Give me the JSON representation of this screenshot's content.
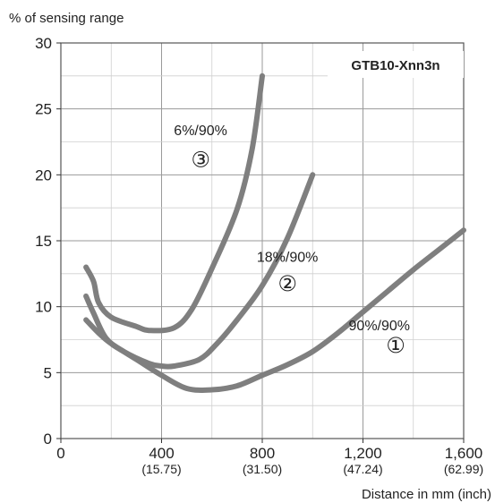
{
  "chart_data": {
    "type": "line",
    "ylabel": "% of sensing range",
    "xlabel": "Distance in mm (inch)",
    "product_label": "GTB10-Xnn3n",
    "xlim": [
      0,
      1600
    ],
    "ylim": [
      0,
      30
    ],
    "grid": true,
    "x_ticks": [
      {
        "value": 0,
        "label": "0",
        "sub": ""
      },
      {
        "value": 400,
        "label": "400",
        "sub": "(15.75)"
      },
      {
        "value": 800,
        "label": "800",
        "sub": "(31.50)"
      },
      {
        "value": 1200,
        "label": "1,200",
        "sub": "(47.24)"
      },
      {
        "value": 1600,
        "label": "1,600",
        "sub": "(62.99)"
      }
    ],
    "y_ticks": [
      {
        "value": 0,
        "label": "0"
      },
      {
        "value": 5,
        "label": "5"
      },
      {
        "value": 10,
        "label": "10"
      },
      {
        "value": 15,
        "label": "15"
      },
      {
        "value": 20,
        "label": "20"
      },
      {
        "value": 25,
        "label": "25"
      },
      {
        "value": 30,
        "label": "30"
      }
    ],
    "series": [
      {
        "name": "90%/90%",
        "marker": "①",
        "color": "#7f7f7f",
        "points": [
          [
            100,
            9.0
          ],
          [
            150,
            8.0
          ],
          [
            200,
            7.2
          ],
          [
            300,
            6.0
          ],
          [
            400,
            4.8
          ],
          [
            500,
            3.8
          ],
          [
            600,
            3.7
          ],
          [
            700,
            4.0
          ],
          [
            800,
            4.8
          ],
          [
            900,
            5.6
          ],
          [
            1000,
            6.6
          ],
          [
            1100,
            8.0
          ],
          [
            1200,
            9.6
          ],
          [
            1300,
            11.2
          ],
          [
            1400,
            12.8
          ],
          [
            1500,
            14.3
          ],
          [
            1600,
            15.8
          ]
        ]
      },
      {
        "name": "18%/90%",
        "marker": "②",
        "color": "#7f7f7f",
        "points": [
          [
            100,
            10.8
          ],
          [
            130,
            9.5
          ],
          [
            180,
            7.6
          ],
          [
            250,
            6.6
          ],
          [
            350,
            5.7
          ],
          [
            400,
            5.5
          ],
          [
            450,
            5.5
          ],
          [
            550,
            6.0
          ],
          [
            620,
            7.2
          ],
          [
            700,
            9.0
          ],
          [
            800,
            11.6
          ],
          [
            900,
            15.2
          ],
          [
            1000,
            20.0
          ]
        ]
      },
      {
        "name": "6%/90%",
        "marker": "③",
        "color": "#7f7f7f",
        "points": [
          [
            100,
            13.0
          ],
          [
            130,
            11.9
          ],
          [
            150,
            10.3
          ],
          [
            200,
            9.2
          ],
          [
            300,
            8.5
          ],
          [
            350,
            8.2
          ],
          [
            450,
            8.4
          ],
          [
            520,
            9.8
          ],
          [
            600,
            12.9
          ],
          [
            700,
            17.4
          ],
          [
            760,
            22.0
          ],
          [
            800,
            27.5
          ]
        ]
      }
    ]
  }
}
